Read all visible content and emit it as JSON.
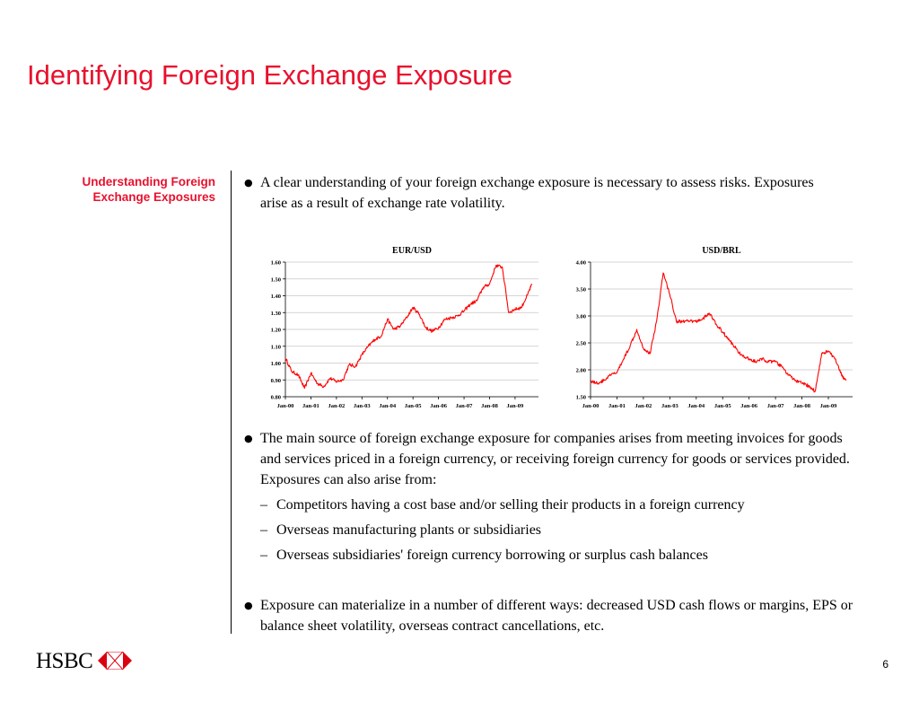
{
  "title": "Identifying Foreign Exchange Exposure",
  "side_heading": "Understanding Foreign Exchange  Exposures",
  "bullets": [
    {
      "text": "A clear understanding of your foreign exchange exposure is necessary to assess risks. Exposures arise as a result of exchange rate volatility."
    },
    {
      "text": "The main source of foreign exchange exposure for companies arises from meeting invoices for goods and services priced in a foreign currency, or receiving foreign currency for goods or services provided. Exposures can also arise from:",
      "sub": [
        "Competitors having a cost base and/or selling their products in a foreign currency",
        "Overseas manufacturing plants or subsidiaries",
        "Overseas subsidiaries' foreign currency borrowing or surplus cash balances"
      ]
    },
    {
      "text": "Exposure can materialize in a number of different ways: decreased USD cash flows or margins, EPS or balance sheet volatility, overseas contract cancellations, etc."
    }
  ],
  "chart_data": [
    {
      "type": "line",
      "title": "EUR/USD",
      "xlabel": "",
      "ylabel": "",
      "grid": true,
      "ylim": [
        0.8,
        1.6
      ],
      "yticks": [
        "0.80",
        "0.90",
        "1.00",
        "1.10",
        "1.20",
        "1.30",
        "1.40",
        "1.50",
        "1.60"
      ],
      "xticks": [
        "Jan-00",
        "Jan-01",
        "Jan-02",
        "Jan-03",
        "Jan-04",
        "Jan-05",
        "Jan-06",
        "Jan-07",
        "Jan-08",
        "Jan-09"
      ],
      "color": "#ff0000",
      "series": [
        {
          "x": [
            "2000-01",
            "2000-04",
            "2000-07",
            "2000-10",
            "2001-01",
            "2001-04",
            "2001-07",
            "2001-10",
            "2002-01",
            "2002-04",
            "2002-07",
            "2002-10",
            "2003-01",
            "2003-04",
            "2003-07",
            "2003-10",
            "2004-01",
            "2004-04",
            "2004-07",
            "2004-10",
            "2005-01",
            "2005-04",
            "2005-07",
            "2005-10",
            "2006-01",
            "2006-04",
            "2006-07",
            "2006-10",
            "2007-01",
            "2007-04",
            "2007-07",
            "2007-10",
            "2008-01",
            "2008-04",
            "2008-07",
            "2008-10",
            "2009-01",
            "2009-04",
            "2009-07",
            "2009-09"
          ],
          "values": [
            1.03,
            0.95,
            0.93,
            0.85,
            0.94,
            0.88,
            0.86,
            0.91,
            0.89,
            0.9,
            0.99,
            0.98,
            1.05,
            1.1,
            1.14,
            1.16,
            1.26,
            1.2,
            1.22,
            1.27,
            1.33,
            1.29,
            1.21,
            1.19,
            1.21,
            1.26,
            1.27,
            1.28,
            1.31,
            1.35,
            1.37,
            1.45,
            1.47,
            1.58,
            1.57,
            1.3,
            1.32,
            1.33,
            1.41,
            1.47
          ]
        }
      ]
    },
    {
      "type": "line",
      "title": "USD/BRL",
      "xlabel": "",
      "ylabel": "",
      "grid": true,
      "ylim": [
        1.5,
        4.0
      ],
      "yticks": [
        "1.50",
        "2.00",
        "2.50",
        "3.00",
        "3.50",
        "4.00"
      ],
      "xticks": [
        "Jan-00",
        "Jan-01",
        "Jan-02",
        "Jan-03",
        "Jan-04",
        "Jan-05",
        "Jan-06",
        "Jan-07",
        "Jan-08",
        "Jan-09"
      ],
      "color": "#ff0000",
      "series": [
        {
          "x": [
            "2000-01",
            "2000-04",
            "2000-07",
            "2000-10",
            "2001-01",
            "2001-04",
            "2001-07",
            "2001-10",
            "2002-01",
            "2002-04",
            "2002-07",
            "2002-10",
            "2003-01",
            "2003-04",
            "2003-07",
            "2003-10",
            "2004-01",
            "2004-04",
            "2004-07",
            "2004-10",
            "2005-01",
            "2005-04",
            "2005-07",
            "2005-10",
            "2006-01",
            "2006-04",
            "2006-07",
            "2006-10",
            "2007-01",
            "2007-04",
            "2007-07",
            "2007-10",
            "2008-01",
            "2008-04",
            "2008-07",
            "2008-10",
            "2009-01",
            "2009-04",
            "2009-07",
            "2009-09"
          ],
          "values": [
            1.8,
            1.75,
            1.8,
            1.9,
            1.95,
            2.2,
            2.45,
            2.75,
            2.4,
            2.3,
            2.9,
            3.8,
            3.4,
            2.9,
            2.9,
            2.9,
            2.9,
            2.95,
            3.05,
            2.85,
            2.7,
            2.55,
            2.4,
            2.25,
            2.2,
            2.15,
            2.2,
            2.15,
            2.15,
            2.05,
            1.9,
            1.8,
            1.75,
            1.7,
            1.6,
            2.3,
            2.35,
            2.2,
            1.9,
            1.8
          ]
        }
      ]
    }
  ],
  "footer": {
    "logo_text": "HSBC",
    "logo_colors": {
      "red": "#db0011",
      "white": "#ffffff"
    },
    "page_number": "6"
  }
}
